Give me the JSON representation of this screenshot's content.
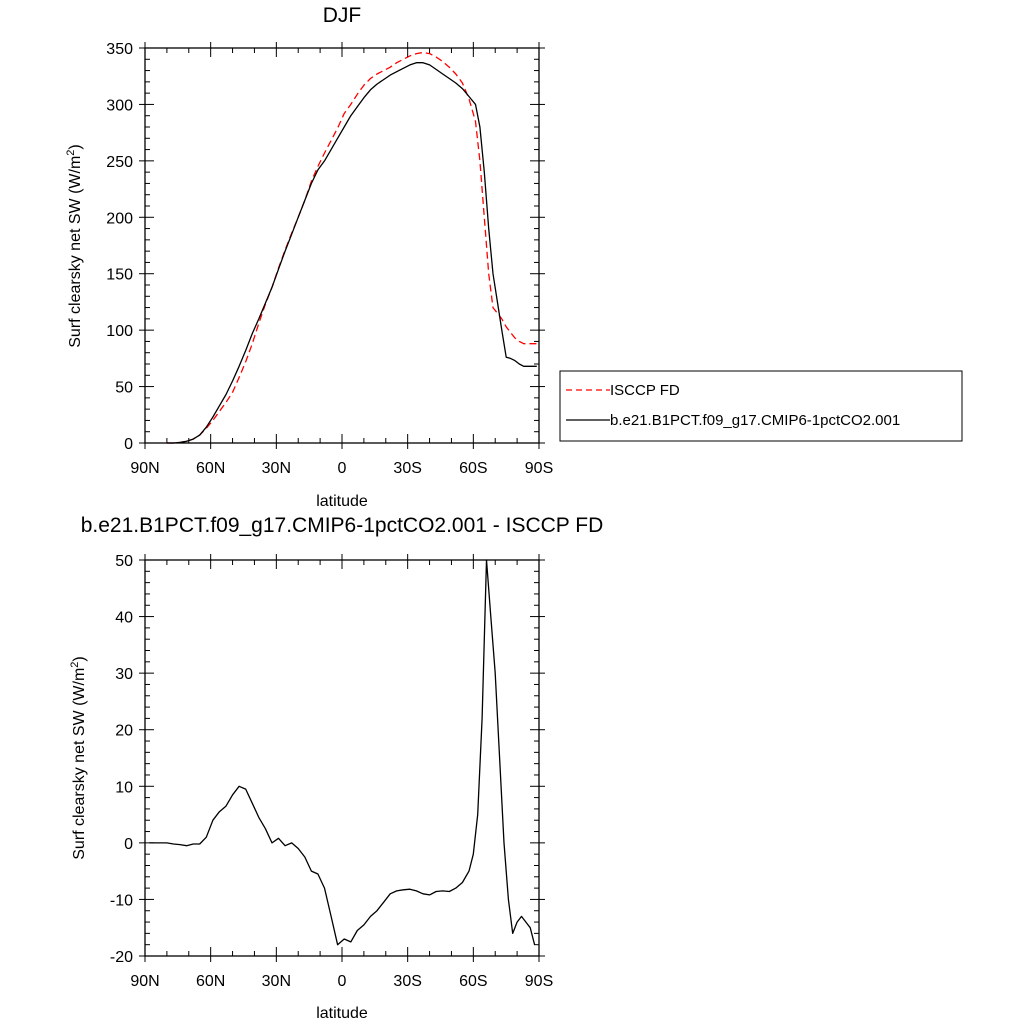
{
  "chart_data": [
    {
      "type": "line",
      "title": "DJF",
      "xlabel": "latitude",
      "ylabel": "Surf clearsky net SW (W/m",
      "ylabel_sup": "2",
      "ylabel_end": ")",
      "xlim": [
        -90,
        90
      ],
      "ylim": [
        0,
        350
      ],
      "xticks": [
        -90,
        -60,
        -30,
        0,
        30,
        60,
        90
      ],
      "xtick_labels": [
        "90N",
        "60N",
        "30N",
        "0",
        "30S",
        "60S",
        "90S"
      ],
      "yticks": [
        0,
        50,
        100,
        150,
        200,
        250,
        300,
        350
      ],
      "ytick_labels": [
        "0",
        "50",
        "100",
        "150",
        "200",
        "250",
        "300",
        "350"
      ],
      "grid": false,
      "legend_position": "right",
      "series": [
        {
          "name": "ISCCP FD",
          "color": "#ff0000",
          "dash": true,
          "x": [
            -80,
            -77,
            -74,
            -71,
            -68,
            -65,
            -62,
            -59,
            -56,
            -53,
            -50,
            -47,
            -44,
            -41,
            -38,
            -35,
            -32,
            -29,
            -26,
            -23,
            -20,
            -17,
            -14,
            -11,
            -8,
            -5,
            -2,
            1,
            4,
            7,
            10,
            13,
            16,
            19,
            22,
            25,
            28,
            31,
            34,
            37,
            40,
            43,
            46,
            49,
            52,
            55,
            58,
            61,
            63,
            65,
            67,
            69,
            71,
            73,
            75,
            77,
            79,
            81,
            83,
            85,
            87,
            89
          ],
          "y": [
            0,
            0,
            0.5,
            1.5,
            3.5,
            7,
            13,
            20,
            28,
            36,
            45,
            58,
            72,
            88,
            106,
            123,
            138,
            155,
            171,
            186,
            200,
            215,
            232,
            245,
            257,
            268,
            279,
            292,
            300,
            309,
            317,
            323,
            327,
            330,
            333,
            337,
            340,
            343,
            345,
            346,
            345,
            342,
            338,
            333,
            327,
            319,
            305,
            285,
            250,
            200,
            150,
            120,
            115,
            110,
            103,
            98,
            93,
            90,
            88,
            88,
            88,
            88
          ],
          "legend_label": "ISCCP FD"
        },
        {
          "name": "b.e21.B1PCT.f09_g17.CMIP6-1pctCO2.001",
          "color": "#000000",
          "dash": false,
          "x": [
            -80,
            -77,
            -74,
            -71,
            -68,
            -65,
            -62,
            -59,
            -56,
            -53,
            -50,
            -47,
            -44,
            -41,
            -38,
            -35,
            -32,
            -29,
            -26,
            -23,
            -20,
            -17,
            -14,
            -11,
            -8,
            -5,
            -2,
            1,
            4,
            7,
            10,
            13,
            16,
            19,
            22,
            25,
            28,
            31,
            34,
            37,
            40,
            43,
            46,
            49,
            52,
            55,
            58,
            61,
            63,
            65,
            67,
            69,
            71,
            73,
            75,
            77,
            79,
            81,
            83,
            85,
            87,
            89
          ],
          "y": [
            0,
            0,
            0.5,
            1.5,
            3.5,
            7,
            14,
            23,
            33,
            43,
            55,
            68,
            82,
            97,
            110,
            124,
            138,
            154,
            170,
            185,
            200,
            215,
            230,
            242,
            250,
            260,
            270,
            280,
            290,
            298,
            306,
            313,
            318,
            322,
            326,
            329,
            332,
            335,
            337,
            337,
            335,
            331,
            327,
            323,
            319,
            314,
            307,
            300,
            280,
            240,
            190,
            150,
            125,
            100,
            76,
            75,
            73,
            70,
            68,
            68,
            68,
            68
          ],
          "legend_label": "b.e21.B1PCT.f09_g17.CMIP6-1pctCO2.001"
        }
      ]
    },
    {
      "type": "line",
      "title": "b.e21.B1PCT.f09_g17.CMIP6-1pctCO2.001 - ISCCP FD",
      "xlabel": "latitude",
      "ylabel": "Surf clearsky net SW (W/m",
      "ylabel_sup": "2",
      "ylabel_end": ")",
      "xlim": [
        -90,
        90
      ],
      "ylim": [
        -20,
        50
      ],
      "xticks": [
        -90,
        -60,
        -30,
        0,
        30,
        60,
        90
      ],
      "xtick_labels": [
        "90N",
        "60N",
        "30N",
        "0",
        "30S",
        "60S",
        "90S"
      ],
      "yticks": [
        -20,
        -10,
        0,
        10,
        20,
        30,
        40,
        50
      ],
      "ytick_labels": [
        "-20",
        "-10",
        "0",
        "10",
        "20",
        "30",
        "40",
        "50"
      ],
      "grid": false,
      "series": [
        {
          "color": "#000000",
          "dash": false,
          "x": [
            -88,
            -84,
            -80,
            -77,
            -74,
            -71,
            -68,
            -65,
            -62,
            -59,
            -56,
            -53,
            -50,
            -47,
            -44,
            -41,
            -38,
            -35,
            -32,
            -29,
            -26,
            -23,
            -20,
            -17,
            -14,
            -11,
            -8,
            -5,
            -2,
            1,
            4,
            7,
            10,
            13,
            16,
            19,
            22,
            25,
            28,
            31,
            34,
            37,
            40,
            43,
            46,
            49,
            52,
            55,
            58,
            60,
            62,
            64,
            66,
            68,
            70,
            72,
            74,
            76,
            78,
            80,
            82,
            84,
            86,
            88
          ],
          "y": [
            0,
            0,
            0,
            -0.2,
            -0.3,
            -0.5,
            -0.2,
            -0.2,
            1,
            4,
            5.5,
            6.5,
            8.5,
            10,
            9.5,
            7,
            4.5,
            2.5,
            0,
            0.8,
            -0.5,
            0,
            -1,
            -2.5,
            -5,
            -5.5,
            -8,
            -13,
            -18,
            -17,
            -17.5,
            -15.5,
            -14.5,
            -13,
            -12,
            -10.5,
            -9,
            -8.5,
            -8.3,
            -8.2,
            -8.5,
            -9,
            -9.2,
            -8.6,
            -8.5,
            -8.6,
            -8,
            -7,
            -5,
            -2,
            5,
            22,
            50,
            40,
            30,
            15,
            0,
            -10,
            -16,
            -14,
            -13,
            -14,
            -15,
            -18
          ]
        }
      ]
    }
  ]
}
